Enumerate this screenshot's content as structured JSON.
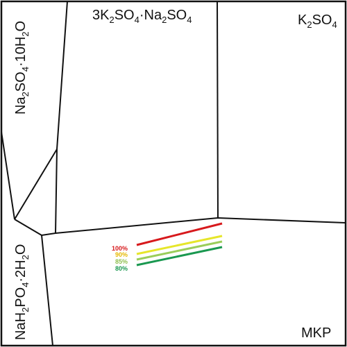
{
  "regions": {
    "na2so4_decahydrate": {
      "main": "Na",
      "s1": "2",
      "mid": "SO",
      "s2": "4",
      "tail": "·10H",
      "s3": "2",
      "end": "O"
    },
    "glaserite": {
      "a": "3K",
      "s1": "2",
      "b": "SO",
      "s2": "4",
      "c": "·Na",
      "s3": "2",
      "d": "SO",
      "s4": "4"
    },
    "k2so4": {
      "a": "K",
      "s1": "2",
      "b": "SO",
      "s2": "4"
    },
    "nah2po4_dihydrate": {
      "a": "NaH",
      "s1": "2",
      "b": "PO",
      "s2": "4",
      "c": "·2H",
      "s3": "2",
      "d": "O"
    },
    "mkp": {
      "label": "MKP"
    }
  },
  "legend": [
    {
      "label": "100%",
      "color": "#d7191c"
    },
    {
      "label": "90%",
      "color": "#e6e62a"
    },
    {
      "label": "85%",
      "color": "#9acd5a"
    },
    {
      "label": "80%",
      "color": "#1a9850"
    }
  ],
  "colors": {
    "boundary": "#111111",
    "background": "#ffffff"
  }
}
